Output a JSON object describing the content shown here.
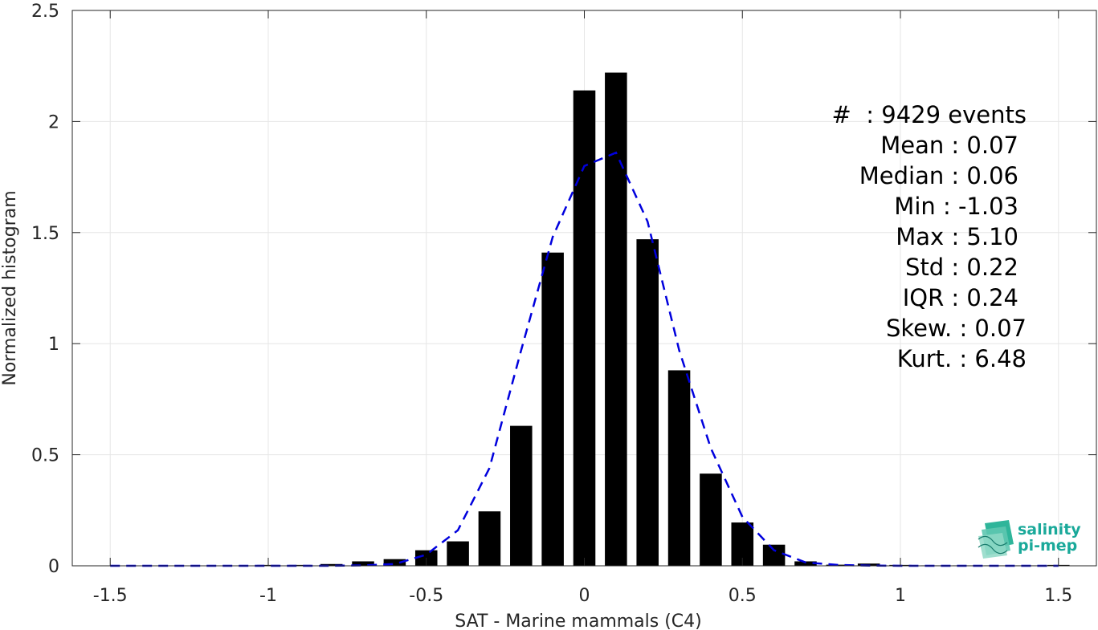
{
  "chart_data": {
    "type": "bar",
    "xlabel": "SAT - Marine mammals (C4)",
    "ylabel": "Normalized histogram",
    "xlim": [
      -1.62,
      1.62
    ],
    "ylim": [
      0,
      2.5
    ],
    "xticks": [
      -1.5,
      -1,
      -0.5,
      0,
      0.5,
      1,
      1.5
    ],
    "xtick_labels": [
      "-1.5",
      "-1",
      "-0.5",
      "0",
      "0.5",
      "1",
      "1.5"
    ],
    "yticks": [
      0,
      0.5,
      1,
      1.5,
      2,
      2.5
    ],
    "ytick_labels": [
      "0",
      "0.5",
      "1",
      "1.5",
      "2",
      "2.5"
    ],
    "grid": true,
    "bar_width": 0.07,
    "bars": {
      "x": [
        -1.5,
        -1.4,
        -1.3,
        -1.2,
        -1.1,
        -1.0,
        -0.9,
        -0.8,
        -0.7,
        -0.6,
        -0.5,
        -0.4,
        -0.3,
        -0.2,
        -0.1,
        0.0,
        0.1,
        0.2,
        0.3,
        0.4,
        0.5,
        0.6,
        0.7,
        0.8,
        0.9,
        1.0,
        1.1,
        1.2,
        1.3,
        1.4,
        1.5
      ],
      "values": [
        0,
        0,
        0,
        0,
        0,
        0.004,
        0.004,
        0.008,
        0.02,
        0.03,
        0.07,
        0.11,
        0.245,
        0.63,
        1.41,
        2.14,
        2.22,
        1.47,
        0.88,
        0.415,
        0.195,
        0.095,
        0.02,
        0.005,
        0.01,
        0.004,
        0.002,
        0.002,
        0.002,
        0.002,
        0.004
      ],
      "color": "#000000"
    },
    "fit_curve": {
      "style": "dashed",
      "color": "#0000dd",
      "x": [
        -1.5,
        -1.4,
        -1.3,
        -1.2,
        -1.1,
        -1.0,
        -0.9,
        -0.8,
        -0.7,
        -0.6,
        -0.5,
        -0.4,
        -0.3,
        -0.2,
        -0.1,
        0.0,
        0.1,
        0.2,
        0.3,
        0.4,
        0.5,
        0.6,
        0.7,
        0.8,
        0.9,
        1.0,
        1.1,
        1.2,
        1.3,
        1.4,
        1.5
      ],
      "y": [
        0,
        0,
        0,
        0,
        0,
        0,
        0,
        0,
        0.002,
        0.008,
        0.05,
        0.16,
        0.44,
        0.97,
        1.48,
        1.8,
        1.86,
        1.55,
        0.97,
        0.53,
        0.22,
        0.07,
        0.015,
        0.004,
        0.001,
        0,
        0,
        0,
        0,
        0,
        0
      ]
    },
    "stats_box": {
      "position": "top-right",
      "lines": [
        "#  : 9429 events",
        "Mean : 0.07",
        "Median : 0.06",
        "Min : -1.03",
        "Max : 5.10",
        "Std : 0.22",
        "IQR : 0.24",
        "Skew. : 0.07",
        "Kurt. : 6.48"
      ]
    }
  },
  "logo": {
    "line1": "salinity",
    "line2": "pi-mep",
    "color": "#1aa99a"
  }
}
